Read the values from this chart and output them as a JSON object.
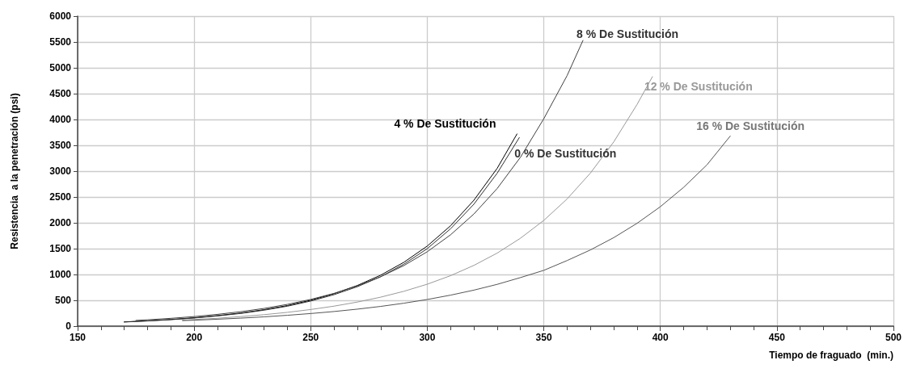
{
  "chart_data": {
    "type": "line",
    "xlabel": "Tiempo de fraguado  (min.)",
    "ylabel": "Resistencia  a la penetración (psi)",
    "xlim": [
      150,
      500
    ],
    "xticks": [
      150,
      200,
      250,
      300,
      350,
      400,
      450,
      500
    ],
    "ylim": [
      0,
      6000
    ],
    "yticks": [
      0,
      500,
      1000,
      1500,
      2000,
      2500,
      3000,
      3500,
      4000,
      4500,
      5000,
      5500,
      6000
    ],
    "grid": true,
    "legend": false,
    "marker": "none",
    "line_style": "solid",
    "series": [
      {
        "name": "4 % De Sustitución",
        "color": "#000000",
        "x": [
          170,
          180,
          190,
          200,
          210,
          220,
          230,
          240,
          250,
          260,
          270,
          280,
          290,
          300,
          310,
          320,
          330,
          338.5
        ],
        "values": [
          82,
          103,
          129,
          162,
          204,
          254,
          319,
          398,
          501,
          628,
          787,
          986,
          1237,
          1550,
          1943,
          2437,
          3055,
          3720
        ]
      },
      {
        "name": "0 % De Sustitución",
        "color": "#303030",
        "x": [
          170,
          180,
          190,
          200,
          210,
          220,
          230,
          240,
          250,
          260,
          270,
          280,
          290,
          300,
          310,
          320,
          330,
          339.5
        ],
        "values": [
          80,
          100,
          125,
          157,
          198,
          246,
          309,
          386,
          486,
          609,
          763,
          956,
          1200,
          1500,
          1885,
          2360,
          2960,
          3650
        ]
      },
      {
        "name": "8 % De Sustitución",
        "color": "#404040",
        "x": [
          175,
          180,
          190,
          200,
          210,
          220,
          230,
          240,
          250,
          260,
          270,
          280,
          290,
          300,
          310,
          320,
          330,
          340,
          350,
          360,
          366.8
        ],
        "values": [
          111,
          123,
          151,
          185,
          228,
          280,
          343,
          421,
          517,
          634,
          779,
          956,
          1173,
          1440,
          1768,
          2170,
          2664,
          3270,
          4015,
          4850,
          5530
        ]
      },
      {
        "name": "12 % De Sustitución",
        "color": "#999999",
        "x": [
          195,
          200,
          210,
          220,
          230,
          240,
          250,
          260,
          270,
          280,
          290,
          300,
          310,
          320,
          330,
          340,
          350,
          360,
          370,
          380,
          390,
          396.6
        ],
        "values": [
          116,
          128,
          153,
          185,
          222,
          267,
          322,
          387,
          466,
          561,
          675,
          812,
          977,
          1176,
          1414,
          1702,
          2047,
          2462,
          2963,
          3566,
          4290,
          4828
        ]
      },
      {
        "name": "16 % De Sustitución",
        "color": "#555555",
        "x": [
          195,
          200,
          210,
          220,
          230,
          240,
          250,
          260,
          270,
          280,
          290,
          300,
          310,
          320,
          330,
          340,
          350,
          360,
          370,
          380,
          390,
          400,
          410,
          420,
          430
        ],
        "values": [
          107,
          115,
          134,
          155,
          180,
          210,
          244,
          283,
          329,
          382,
          444,
          516,
          600,
          697,
          809,
          940,
          1080,
          1270,
          1475,
          1713,
          1990,
          2312,
          2687,
          3122,
          3680
        ]
      }
    ]
  }
}
